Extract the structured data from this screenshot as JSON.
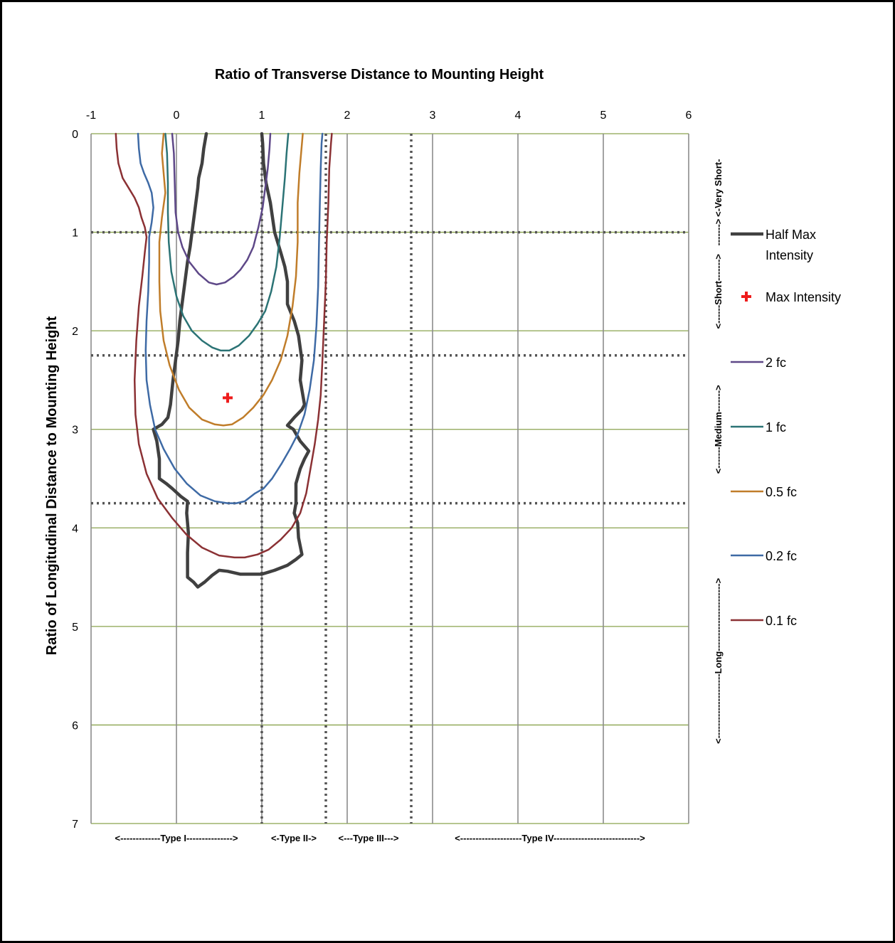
{
  "chart_data": {
    "type": "line",
    "title": "Ratio of Transverse Distance to Mounting Height",
    "xlabel": "Ratio of Transverse Distance to Mounting Height",
    "ylabel": "Ratio of Longitudinal Distance to Mounting Height",
    "xlim": [
      -1,
      6
    ],
    "ylim": [
      0,
      7
    ],
    "y_inverted": true,
    "x_axis_position": "top",
    "x_ticks": [
      "-1",
      "0",
      "1",
      "2",
      "3",
      "4",
      "5",
      "6"
    ],
    "y_ticks": [
      "0",
      "1",
      "2",
      "3",
      "4",
      "5",
      "6",
      "7"
    ],
    "grid": true,
    "legend_position": "right",
    "colors": {
      "vertical_grid": "#8c8c8c",
      "horizontal_grid": "#8aa34e",
      "divider": "#555555",
      "max_marker": "#ee1c1c"
    },
    "type_bands": {
      "boundaries_x": [
        1,
        1.75,
        2.75
      ],
      "labels": [
        "<-------------Type I--------------->",
        "<-Type II->",
        "<---Type III--->",
        "<--------------------Type IV---------------------------->"
      ]
    },
    "range_bands": {
      "boundaries_y": [
        1,
        2.25,
        3.75
      ],
      "labels": [
        "<-Very Short-",
        "------->",
        "<------Short------->",
        "<-------Medium------->",
        "<---------------------Long---------------------->"
      ]
    },
    "max_intensity": {
      "name": "Max Intensity",
      "x": 0.6,
      "y": 2.68
    },
    "series": [
      {
        "name": "Half Max Intensity",
        "color": "#404040",
        "width": 4.5,
        "points": [
          [
            0.35,
            0
          ],
          [
            0.32,
            0.15
          ],
          [
            0.3,
            0.3
          ],
          [
            0.26,
            0.45
          ],
          [
            0.25,
            0.55
          ],
          [
            0.22,
            0.75
          ],
          [
            0.19,
            0.95
          ],
          [
            0.16,
            1.15
          ],
          [
            0.13,
            1.3
          ],
          [
            0.1,
            1.5
          ],
          [
            0.07,
            1.7
          ],
          [
            0.04,
            1.9
          ],
          [
            0.02,
            2.1
          ],
          [
            -0.01,
            2.3
          ],
          [
            -0.04,
            2.5
          ],
          [
            -0.07,
            2.75
          ],
          [
            -0.1,
            2.88
          ],
          [
            -0.17,
            2.95
          ],
          [
            -0.27,
            3.0
          ],
          [
            -0.23,
            3.12
          ],
          [
            -0.2,
            3.3
          ],
          [
            -0.2,
            3.5
          ],
          [
            -0.12,
            3.55
          ],
          [
            -0.05,
            3.6
          ],
          [
            0.05,
            3.68
          ],
          [
            0.13,
            3.73
          ],
          [
            0.12,
            3.85
          ],
          [
            0.14,
            4.05
          ],
          [
            0.13,
            4.25
          ],
          [
            0.13,
            4.5
          ],
          [
            0.2,
            4.55
          ],
          [
            0.25,
            4.6
          ],
          [
            0.33,
            4.55
          ],
          [
            0.42,
            4.48
          ],
          [
            0.5,
            4.43
          ],
          [
            0.6,
            4.44
          ],
          [
            0.75,
            4.47
          ],
          [
            1.0,
            4.47
          ],
          [
            1.15,
            4.43
          ],
          [
            1.3,
            4.38
          ],
          [
            1.4,
            4.32
          ],
          [
            1.47,
            4.27
          ],
          [
            1.43,
            4.1
          ],
          [
            1.42,
            3.95
          ],
          [
            1.38,
            3.85
          ],
          [
            1.4,
            3.75
          ],
          [
            1.4,
            3.55
          ],
          [
            1.45,
            3.4
          ],
          [
            1.5,
            3.3
          ],
          [
            1.55,
            3.22
          ],
          [
            1.45,
            3.12
          ],
          [
            1.37,
            3.0
          ],
          [
            1.3,
            2.96
          ],
          [
            1.38,
            2.88
          ],
          [
            1.47,
            2.8
          ],
          [
            1.5,
            2.75
          ],
          [
            1.45,
            2.5
          ],
          [
            1.47,
            2.3
          ],
          [
            1.43,
            2.05
          ],
          [
            1.38,
            1.9
          ],
          [
            1.3,
            1.73
          ],
          [
            1.3,
            1.5
          ],
          [
            1.27,
            1.35
          ],
          [
            1.22,
            1.2
          ],
          [
            1.15,
            1.0
          ],
          [
            1.1,
            0.7
          ],
          [
            1.05,
            0.5
          ],
          [
            1.02,
            0.3
          ],
          [
            1.01,
            0.1
          ],
          [
            1.0,
            0
          ]
        ]
      },
      {
        "name": "2 fc",
        "color": "#5e4888",
        "width": 2.5,
        "points": [
          [
            -0.05,
            0
          ],
          [
            -0.03,
            0.2
          ],
          [
            -0.02,
            0.5
          ],
          [
            -0.01,
            0.8
          ],
          [
            0.02,
            1.0
          ],
          [
            0.07,
            1.15
          ],
          [
            0.15,
            1.3
          ],
          [
            0.26,
            1.42
          ],
          [
            0.38,
            1.51
          ],
          [
            0.47,
            1.53
          ],
          [
            0.57,
            1.51
          ],
          [
            0.67,
            1.45
          ],
          [
            0.75,
            1.38
          ],
          [
            0.83,
            1.28
          ],
          [
            0.9,
            1.15
          ],
          [
            0.96,
            0.95
          ],
          [
            1.01,
            0.75
          ],
          [
            1.04,
            0.55
          ],
          [
            1.07,
            0.35
          ],
          [
            1.09,
            0.15
          ],
          [
            1.1,
            0
          ]
        ]
      },
      {
        "name": "1 fc",
        "color": "#2b7375",
        "width": 2.5,
        "points": [
          [
            -0.13,
            0
          ],
          [
            -0.11,
            0.2
          ],
          [
            -0.1,
            0.5
          ],
          [
            -0.1,
            0.8
          ],
          [
            -0.09,
            1.1
          ],
          [
            -0.06,
            1.4
          ],
          [
            0.0,
            1.65
          ],
          [
            0.08,
            1.85
          ],
          [
            0.18,
            2.0
          ],
          [
            0.3,
            2.1
          ],
          [
            0.42,
            2.17
          ],
          [
            0.52,
            2.2
          ],
          [
            0.62,
            2.2
          ],
          [
            0.73,
            2.15
          ],
          [
            0.85,
            2.05
          ],
          [
            0.95,
            1.93
          ],
          [
            1.04,
            1.8
          ],
          [
            1.11,
            1.6
          ],
          [
            1.17,
            1.35
          ],
          [
            1.21,
            1.05
          ],
          [
            1.24,
            0.75
          ],
          [
            1.27,
            0.45
          ],
          [
            1.29,
            0.2
          ],
          [
            1.31,
            0
          ]
        ]
      },
      {
        "name": "0.5 fc",
        "color": "#c07d2a",
        "width": 2.5,
        "points": [
          [
            -0.15,
            0
          ],
          [
            -0.17,
            0.2
          ],
          [
            -0.15,
            0.4
          ],
          [
            -0.13,
            0.6
          ],
          [
            -0.17,
            0.85
          ],
          [
            -0.2,
            1.1
          ],
          [
            -0.2,
            1.5
          ],
          [
            -0.19,
            1.8
          ],
          [
            -0.15,
            2.1
          ],
          [
            -0.08,
            2.35
          ],
          [
            0.03,
            2.6
          ],
          [
            0.15,
            2.78
          ],
          [
            0.3,
            2.9
          ],
          [
            0.45,
            2.95
          ],
          [
            0.55,
            2.96
          ],
          [
            0.65,
            2.95
          ],
          [
            0.78,
            2.88
          ],
          [
            0.9,
            2.78
          ],
          [
            1.02,
            2.65
          ],
          [
            1.12,
            2.5
          ],
          [
            1.22,
            2.3
          ],
          [
            1.3,
            2.05
          ],
          [
            1.36,
            1.75
          ],
          [
            1.4,
            1.45
          ],
          [
            1.42,
            1.1
          ],
          [
            1.42,
            0.7
          ],
          [
            1.44,
            0.4
          ],
          [
            1.47,
            0.1
          ],
          [
            1.48,
            0
          ]
        ]
      },
      {
        "name": "0.2 fc",
        "color": "#3e6aa5",
        "width": 2.5,
        "points": [
          [
            -0.45,
            0
          ],
          [
            -0.44,
            0.15
          ],
          [
            -0.42,
            0.3
          ],
          [
            -0.38,
            0.4
          ],
          [
            -0.33,
            0.5
          ],
          [
            -0.29,
            0.6
          ],
          [
            -0.27,
            0.75
          ],
          [
            -0.29,
            0.9
          ],
          [
            -0.32,
            1.05
          ],
          [
            -0.32,
            1.3
          ],
          [
            -0.33,
            1.6
          ],
          [
            -0.35,
            1.9
          ],
          [
            -0.36,
            2.2
          ],
          [
            -0.35,
            2.5
          ],
          [
            -0.31,
            2.75
          ],
          [
            -0.25,
            3.0
          ],
          [
            -0.15,
            3.2
          ],
          [
            -0.02,
            3.4
          ],
          [
            0.12,
            3.55
          ],
          [
            0.28,
            3.67
          ],
          [
            0.45,
            3.73
          ],
          [
            0.6,
            3.75
          ],
          [
            0.7,
            3.75
          ],
          [
            0.8,
            3.73
          ],
          [
            0.92,
            3.65
          ],
          [
            1.02,
            3.6
          ],
          [
            1.12,
            3.5
          ],
          [
            1.23,
            3.35
          ],
          [
            1.33,
            3.2
          ],
          [
            1.42,
            3.05
          ],
          [
            1.5,
            2.85
          ],
          [
            1.56,
            2.6
          ],
          [
            1.61,
            2.3
          ],
          [
            1.64,
            1.95
          ],
          [
            1.66,
            1.55
          ],
          [
            1.67,
            1.1
          ],
          [
            1.68,
            0.7
          ],
          [
            1.69,
            0.35
          ],
          [
            1.7,
            0.1
          ],
          [
            1.71,
            0
          ]
        ]
      },
      {
        "name": "0.1 fc",
        "color": "#8b3134",
        "width": 2.5,
        "points": [
          [
            -0.71,
            0
          ],
          [
            -0.7,
            0.15
          ],
          [
            -0.68,
            0.3
          ],
          [
            -0.63,
            0.45
          ],
          [
            -0.56,
            0.55
          ],
          [
            -0.49,
            0.65
          ],
          [
            -0.44,
            0.75
          ],
          [
            -0.41,
            0.85
          ],
          [
            -0.37,
            0.95
          ],
          [
            -0.35,
            1.05
          ],
          [
            -0.37,
            1.2
          ],
          [
            -0.4,
            1.45
          ],
          [
            -0.44,
            1.75
          ],
          [
            -0.47,
            2.1
          ],
          [
            -0.49,
            2.5
          ],
          [
            -0.48,
            2.85
          ],
          [
            -0.44,
            3.15
          ],
          [
            -0.35,
            3.45
          ],
          [
            -0.22,
            3.7
          ],
          [
            -0.05,
            3.9
          ],
          [
            0.12,
            4.07
          ],
          [
            0.3,
            4.2
          ],
          [
            0.5,
            4.28
          ],
          [
            0.68,
            4.3
          ],
          [
            0.8,
            4.3
          ],
          [
            0.95,
            4.27
          ],
          [
            1.08,
            4.22
          ],
          [
            1.22,
            4.12
          ],
          [
            1.35,
            4.0
          ],
          [
            1.45,
            3.85
          ],
          [
            1.52,
            3.65
          ],
          [
            1.57,
            3.4
          ],
          [
            1.62,
            3.15
          ],
          [
            1.66,
            2.9
          ],
          [
            1.69,
            2.65
          ],
          [
            1.71,
            2.3
          ],
          [
            1.73,
            1.9
          ],
          [
            1.75,
            1.5
          ],
          [
            1.76,
            1.1
          ],
          [
            1.78,
            0.7
          ],
          [
            1.79,
            0.35
          ],
          [
            1.81,
            0.1
          ],
          [
            1.82,
            0
          ]
        ]
      }
    ]
  }
}
